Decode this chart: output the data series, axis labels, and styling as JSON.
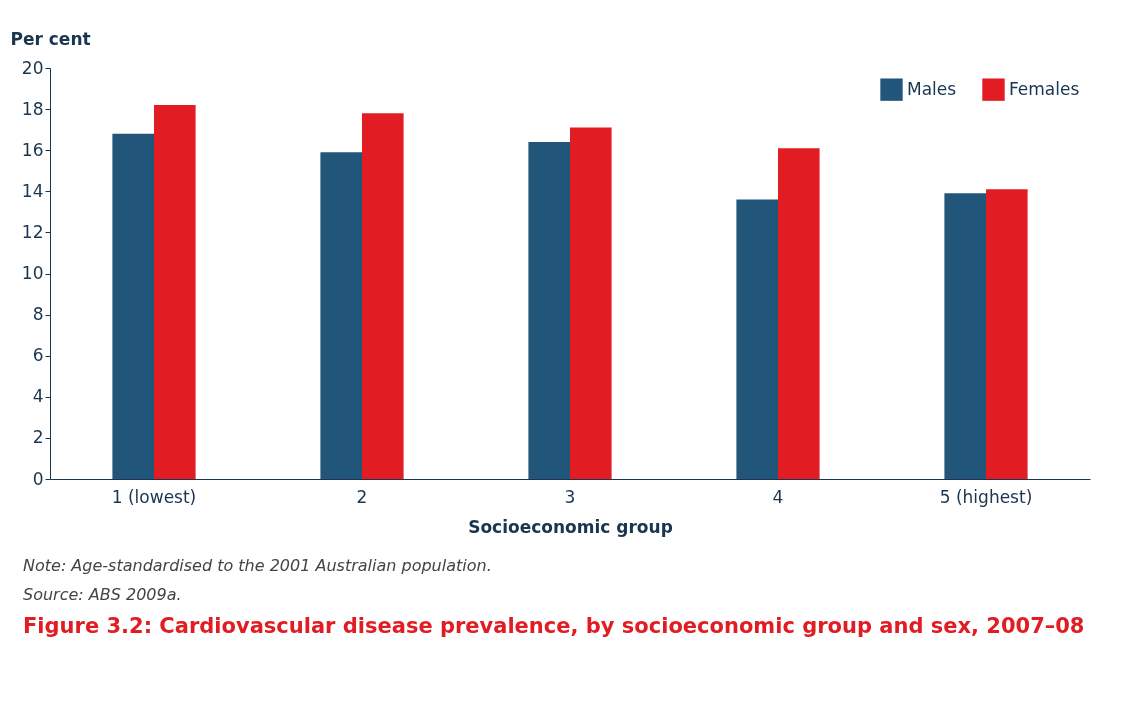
{
  "chart_data": {
    "type": "bar",
    "title": "Figure 3.2: Cardiovascular disease prevalence, by socioeconomic group and sex, 2007–08",
    "xlabel": "Socioeconomic group",
    "ylabel": "Per cent",
    "categories": [
      "1 (lowest)",
      "2",
      "3",
      "4",
      "5 (highest)"
    ],
    "series": [
      {
        "name": "Males",
        "color": "#22557a",
        "values": [
          16.8,
          15.9,
          16.4,
          13.6,
          13.9
        ]
      },
      {
        "name": "Females",
        "color": "#e21c23",
        "values": [
          18.2,
          17.8,
          17.1,
          16.1,
          14.1
        ]
      }
    ],
    "ylim": [
      0,
      20
    ],
    "yticks": [
      0,
      2,
      4,
      6,
      8,
      10,
      12,
      14,
      16,
      18,
      20
    ],
    "grid": false,
    "legend": "top right",
    "annotations": [
      "Note: Age-standardised to the 2001 Australian population.",
      "Source: ABS 2009a."
    ]
  }
}
